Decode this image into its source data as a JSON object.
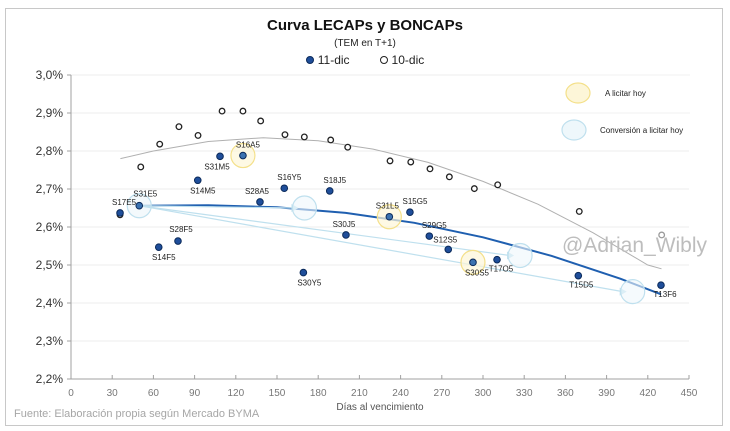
{
  "chart_data": {
    "type": "scatter",
    "title": "Curva LECAPs y BONCAPs",
    "subtitle": "(TEM en T+1)",
    "xlabel": "Días al vencimiento",
    "ylabel": "",
    "xlim": [
      0,
      450
    ],
    "ylim": [
      2.2,
      3.0
    ],
    "x_ticks": [
      "0",
      "30",
      "60",
      "90",
      "120",
      "150",
      "180",
      "210",
      "240",
      "270",
      "300",
      "330",
      "360",
      "390",
      "420",
      "450"
    ],
    "y_ticks": [
      "2,2%",
      "2,3%",
      "2,4%",
      "2,5%",
      "2,6%",
      "2,7%",
      "2,8%",
      "2,9%",
      "3,0%"
    ],
    "grid": "horizontal",
    "legend": "top-center",
    "series": [
      {
        "name": "11-dic",
        "marker": "filled",
        "color": "#1f4e9a",
        "points": [
          {
            "label": "S17E5",
            "x": 35.7,
            "y": 2.637
          },
          {
            "label": "S31E5",
            "x": 49.7,
            "y": 2.656
          },
          {
            "label": "S14F5",
            "x": 63.9,
            "y": 2.547
          },
          {
            "label": "S28F5",
            "x": 77.9,
            "y": 2.563
          },
          {
            "label": "S14M5",
            "x": 92.3,
            "y": 2.723
          },
          {
            "label": "S31M5",
            "x": 108.5,
            "y": 2.786
          },
          {
            "label": "S16A5",
            "x": 125.2,
            "y": 2.788
          },
          {
            "label": "S28A5",
            "x": 137.6,
            "y": 2.666
          },
          {
            "label": "S16Y5",
            "x": 155.3,
            "y": 2.702
          },
          {
            "label": "S30Y5",
            "x": 169.2,
            "y": 2.48
          },
          {
            "label": "S18J5",
            "x": 188.4,
            "y": 2.695
          },
          {
            "label": "S30J5",
            "x": 200.2,
            "y": 2.579
          },
          {
            "label": "S31L5",
            "x": 231.8,
            "y": 2.627
          },
          {
            "label": "S15G5",
            "x": 246.8,
            "y": 2.639
          },
          {
            "label": "S29G5",
            "x": 260.9,
            "y": 2.576
          },
          {
            "label": "S12S5",
            "x": 274.7,
            "y": 2.541
          },
          {
            "label": "S30S5",
            "x": 292.7,
            "y": 2.507
          },
          {
            "label": "T17O5",
            "x": 310.2,
            "y": 2.514
          },
          {
            "label": "T15D5",
            "x": 369.4,
            "y": 2.472
          },
          {
            "label": "T13F6",
            "x": 429.6,
            "y": 2.447
          }
        ]
      },
      {
        "name": "10-dic",
        "marker": "hollow",
        "color": "#222222",
        "points": [
          {
            "x": 35.7,
            "y": 2.632
          },
          {
            "x": 50.8,
            "y": 2.758
          },
          {
            "x": 64.6,
            "y": 2.818
          },
          {
            "x": 78.6,
            "y": 2.864
          },
          {
            "x": 92.5,
            "y": 2.841
          },
          {
            "x": 110.0,
            "y": 2.905
          },
          {
            "x": 125.2,
            "y": 2.905
          },
          {
            "x": 138.1,
            "y": 2.879
          },
          {
            "x": 155.8,
            "y": 2.843
          },
          {
            "x": 169.9,
            "y": 2.837
          },
          {
            "x": 189.1,
            "y": 2.829
          },
          {
            "x": 201.5,
            "y": 2.81
          },
          {
            "x": 232.3,
            "y": 2.774
          },
          {
            "x": 247.4,
            "y": 2.771
          },
          {
            "x": 261.4,
            "y": 2.753
          },
          {
            "x": 275.5,
            "y": 2.732
          },
          {
            "x": 293.7,
            "y": 2.701
          },
          {
            "x": 310.7,
            "y": 2.711
          },
          {
            "x": 370.1,
            "y": 2.641
          },
          {
            "x": 430.1,
            "y": 2.579
          }
        ]
      }
    ],
    "trendlines": [
      {
        "series": "11-dic",
        "color": "#1f5fb0",
        "points": [
          [
            49.7,
            2.656
          ],
          [
            100,
            2.657
          ],
          [
            150,
            2.652
          ],
          [
            200,
            2.637
          ],
          [
            250,
            2.611
          ],
          [
            300,
            2.573
          ],
          [
            350,
            2.524
          ],
          [
            400,
            2.464
          ],
          [
            429.6,
            2.423
          ]
        ]
      },
      {
        "series": "10-dic",
        "color": "#b0b0b0",
        "points": [
          [
            36,
            2.78
          ],
          [
            60,
            2.8
          ],
          [
            100,
            2.825
          ],
          [
            140,
            2.835
          ],
          [
            180,
            2.827
          ],
          [
            220,
            2.805
          ],
          [
            260,
            2.77
          ],
          [
            300,
            2.72
          ],
          [
            340,
            2.66
          ],
          [
            380,
            2.585
          ],
          [
            420,
            2.5
          ],
          [
            430,
            2.49
          ]
        ]
      }
    ],
    "highlights": {
      "a_licitar_hoy": {
        "label": "A licitar hoy",
        "color": "#f4e08a",
        "targets": [
          "S16A5",
          "S31L5",
          "S30S5"
        ]
      },
      "conversion": {
        "label": "Conversión a licitar hoy",
        "color": "#bfe0ee",
        "from": "S31E5",
        "targets": [
          {
            "x": 170,
            "y": 2.65
          },
          {
            "x": 327,
            "y": 2.525
          },
          {
            "x": 409,
            "y": 2.43
          }
        ]
      }
    },
    "watermark": "@Adrian_Wibly",
    "source": "Fuente: Elaboración propia según Mercado BYMA"
  },
  "legend": {
    "s1": "11-dic",
    "s2": "10-dic"
  }
}
